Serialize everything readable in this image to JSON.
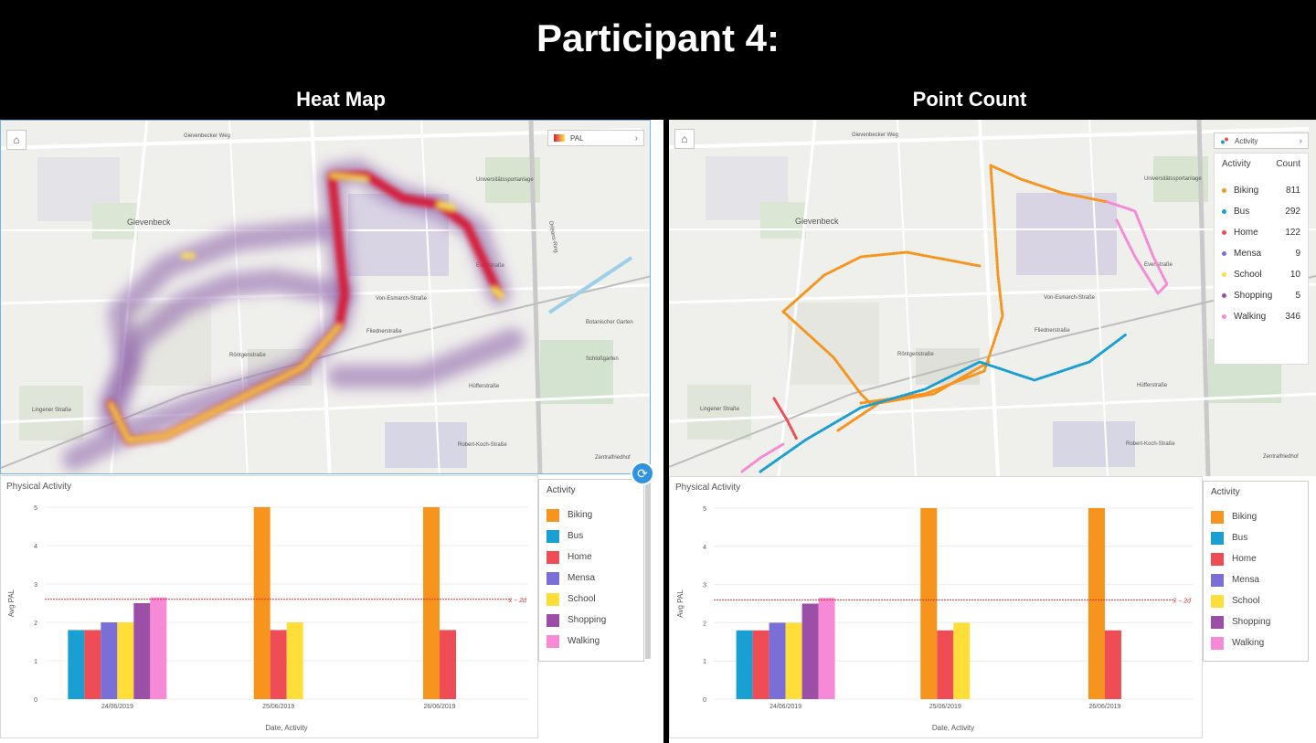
{
  "slide": {
    "title": "Participant 4:",
    "left_title": "Heat Map",
    "right_title": "Point Count"
  },
  "map_labels": {
    "gievenbeck": "Gievenbeck",
    "gievenbecker_weg": "Gievenbecker Weg",
    "von_esmarch": "Von-Esmarch-Straße",
    "universitaetssport": "Universitätssportanlage",
    "fliednerstrasse": "Fliednerstraße",
    "roentgenstrasse": "Röntgenstraße",
    "orleans_ring": "Orléans-Ring",
    "huefferstrasse": "Hüfferstraße",
    "robert_koch": "Robert-Koch-Straße",
    "botanischer": "Botanischer Garten",
    "schlossgarten": "Schloßgarten",
    "zentralfriedhof": "Zentralfriedhof",
    "lingemer": "Lingener Straße",
    "evertstrasse": "Evertstraße"
  },
  "left_map": {
    "home_icon": "home-icon",
    "legend_label": "PAL"
  },
  "right_map": {
    "home_icon": "home-icon",
    "legend_label": "Activity",
    "table": {
      "col_activity": "Activity",
      "col_count": "Count",
      "rows": [
        {
          "activity": "Biking",
          "count": "811",
          "color": "#f7941d"
        },
        {
          "activity": "Bus",
          "count": "292",
          "color": "#1a9fd2"
        },
        {
          "activity": "Home",
          "count": "122",
          "color": "#ee4d55"
        },
        {
          "activity": "Mensa",
          "count": "9",
          "color": "#7a6fd6"
        },
        {
          "activity": "School",
          "count": "10",
          "color": "#ffde3a"
        },
        {
          "activity": "Shopping",
          "count": "5",
          "color": "#9c4fa6"
        },
        {
          "activity": "Walking",
          "count": "346",
          "color": "#f68ad6"
        }
      ]
    }
  },
  "chart": {
    "title": "Physical Activity",
    "legend_title": "Activity",
    "ref_label": "x̄ − 2d",
    "legend": [
      {
        "name": "Biking",
        "color": "#f7941d"
      },
      {
        "name": "Bus",
        "color": "#1a9fd2"
      },
      {
        "name": "Home",
        "color": "#ee4d55"
      },
      {
        "name": "Mensa",
        "color": "#7a6fd6"
      },
      {
        "name": "School",
        "color": "#ffde3a"
      },
      {
        "name": "Shopping",
        "color": "#9c4fa6"
      },
      {
        "name": "Walking",
        "color": "#f68ad6"
      }
    ]
  },
  "chart_data": {
    "type": "bar",
    "title": "Physical Activity",
    "xlabel": "Date, Activity",
    "ylabel": "Avg PAL",
    "ylim": [
      0,
      5
    ],
    "yticks": [
      0,
      1,
      2,
      3,
      4,
      5
    ],
    "reference_line": {
      "value": 2.6,
      "label": "x̄ − 2d"
    },
    "categories": [
      "24/06/2019",
      "25/06/2019",
      "26/06/2019"
    ],
    "groups": [
      {
        "date": "24/06/2019",
        "bars": [
          {
            "activity": "Bus",
            "value": 1.8
          },
          {
            "activity": "Home",
            "value": 1.8
          },
          {
            "activity": "Mensa",
            "value": 2.0
          },
          {
            "activity": "School",
            "value": 2.0
          },
          {
            "activity": "Shopping",
            "value": 2.5
          },
          {
            "activity": "Walking",
            "value": 2.65
          }
        ]
      },
      {
        "date": "25/06/2019",
        "bars": [
          {
            "activity": "Biking",
            "value": 5.0
          },
          {
            "activity": "Home",
            "value": 1.8
          },
          {
            "activity": "School",
            "value": 2.0
          }
        ]
      },
      {
        "date": "26/06/2019",
        "bars": [
          {
            "activity": "Biking",
            "value": 5.0
          },
          {
            "activity": "Home",
            "value": 1.8
          }
        ]
      }
    ]
  },
  "colors": {
    "Biking": "#f7941d",
    "Bus": "#1a9fd2",
    "Home": "#ee4d55",
    "Mensa": "#7a6fd6",
    "School": "#ffde3a",
    "Shopping": "#9c4fa6",
    "Walking": "#f68ad6",
    "selection": "#6fb7ea"
  }
}
